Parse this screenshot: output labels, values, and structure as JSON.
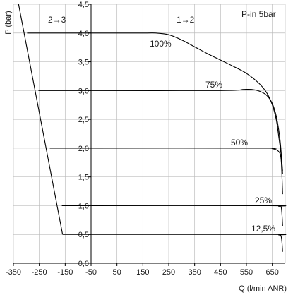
{
  "chart_data": {
    "type": "line",
    "title": "",
    "xlabel": "Q (l/min ANR)",
    "ylabel": "P (bar)",
    "xlim": [
      -350,
      700
    ],
    "ylim": [
      0,
      4.5
    ],
    "grid": true,
    "x_ticks": [
      "-350",
      "-250",
      "-150",
      "-50",
      "50",
      "150",
      "250",
      "350",
      "450",
      "550",
      "650"
    ],
    "y_ticks": [
      "0,0",
      "0,5",
      "1,0",
      "1,5",
      "2,0",
      "2,5",
      "3,0",
      "3,5",
      "4,0",
      "4,5"
    ],
    "annotations": {
      "inlet": "P-in 5bar",
      "relief_region": "2→3",
      "supply_region": "1→2"
    },
    "series": [
      {
        "name": "100%",
        "x": [
          -50,
          150,
          200,
          250,
          300,
          350,
          400,
          450,
          500,
          550,
          600,
          630,
          650,
          665,
          675,
          685,
          690
        ],
        "y": [
          4.0,
          4.0,
          4.0,
          3.97,
          3.88,
          3.76,
          3.64,
          3.53,
          3.42,
          3.3,
          3.12,
          2.95,
          2.75,
          2.5,
          2.2,
          1.85,
          1.6
        ]
      },
      {
        "name": "75%",
        "x": [
          -50,
          450,
          540,
          570,
          600,
          625,
          645,
          660,
          672,
          682,
          690
        ],
        "y": [
          3.0,
          3.0,
          3.02,
          3.02,
          2.99,
          2.93,
          2.82,
          2.65,
          2.4,
          2.05,
          1.55
        ]
      },
      {
        "name": "50%",
        "x": [
          -50,
          600,
          650,
          670,
          680,
          685,
          690
        ],
        "y": [
          2.0,
          2.0,
          1.99,
          1.96,
          1.9,
          1.75,
          1.2
        ]
      },
      {
        "name": "25%",
        "x": [
          -50,
          640,
          675,
          685,
          690
        ],
        "y": [
          1.0,
          1.0,
          0.99,
          0.96,
          0.65
        ]
      },
      {
        "name": "12,5%",
        "x": [
          -50,
          640,
          675,
          685,
          690
        ],
        "y": [
          0.5,
          0.5,
          0.49,
          0.45,
          0.2
        ]
      }
    ],
    "relief_line": {
      "x": [
        -330,
        -160
      ],
      "y": [
        4.5,
        0.5
      ]
    },
    "relief_steps": [
      {
        "y": 4.0,
        "x_start": -297.1
      },
      {
        "y": 3.0,
        "x_start": -253.3
      },
      {
        "y": 2.0,
        "x_start": -209.4
      },
      {
        "y": 1.0,
        "x_start": -163.0
      },
      {
        "y": 0.5,
        "x_start": -160.0
      }
    ],
    "colors": {
      "line": "#000000",
      "grid": "#bdbdbd",
      "axis": "#000000"
    }
  }
}
